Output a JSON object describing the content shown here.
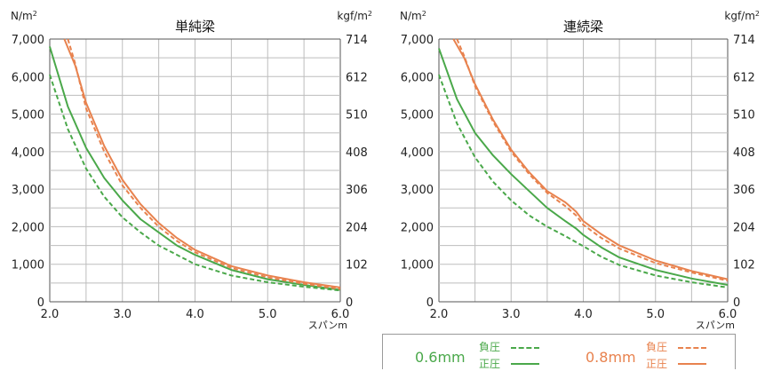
{
  "chart_data": [
    {
      "type": "line",
      "title": "単純梁",
      "x_unit": "スパンm",
      "y_left_unit": "N/m²",
      "y_right_unit": "kgf/m²",
      "x_ticks": [
        "2.0",
        "3.0",
        "4.0",
        "5.0",
        "6.0"
      ],
      "y_left_ticks": [
        "0",
        "1,000",
        "2,000",
        "3,000",
        "4,000",
        "5,000",
        "6,000",
        "7,000"
      ],
      "y_right_ticks": [
        "0",
        "102",
        "204",
        "306",
        "408",
        "510",
        "612",
        "714"
      ],
      "xlim": [
        2.0,
        6.0
      ],
      "ylim": [
        0,
        7000
      ],
      "grid": true,
      "series": [
        {
          "key": "s06_pos",
          "color": "#4aa84a",
          "dash": false,
          "points": [
            [
              2.0,
              6800
            ],
            [
              2.25,
              5200
            ],
            [
              2.5,
              4100
            ],
            [
              2.75,
              3300
            ],
            [
              3.0,
              2700
            ],
            [
              3.25,
              2200
            ],
            [
              3.5,
              1850
            ],
            [
              3.75,
              1500
            ],
            [
              4.0,
              1250
            ],
            [
              4.5,
              850
            ],
            [
              5.0,
              600
            ],
            [
              5.5,
              450
            ],
            [
              6.0,
              320
            ]
          ]
        },
        {
          "key": "s06_neg",
          "color": "#4aa84a",
          "dash": true,
          "points": [
            [
              2.0,
              6050
            ],
            [
              2.25,
              4600
            ],
            [
              2.5,
              3550
            ],
            [
              2.75,
              2800
            ],
            [
              3.0,
              2250
            ],
            [
              3.25,
              1850
            ],
            [
              3.5,
              1500
            ],
            [
              3.75,
              1250
            ],
            [
              4.0,
              1000
            ],
            [
              4.5,
              700
            ],
            [
              5.0,
              520
            ],
            [
              5.5,
              400
            ],
            [
              6.0,
              300
            ]
          ]
        },
        {
          "key": "s08_pos",
          "color": "#e8824e",
          "dash": false,
          "points": [
            [
              2.2,
              7000
            ],
            [
              2.35,
              6300
            ],
            [
              2.5,
              5300
            ],
            [
              2.75,
              4150
            ],
            [
              3.0,
              3250
            ],
            [
              3.25,
              2600
            ],
            [
              3.5,
              2100
            ],
            [
              3.75,
              1700
            ],
            [
              4.0,
              1380
            ],
            [
              4.5,
              950
            ],
            [
              5.0,
              700
            ],
            [
              5.5,
              520
            ],
            [
              6.0,
              380
            ]
          ]
        },
        {
          "key": "s08_neg",
          "color": "#e8824e",
          "dash": true,
          "points": [
            [
              2.25,
              7000
            ],
            [
              2.35,
              6350
            ],
            [
              2.5,
              5150
            ],
            [
              2.75,
              4000
            ],
            [
              3.0,
              3100
            ],
            [
              3.25,
              2500
            ],
            [
              3.5,
              2000
            ],
            [
              3.75,
              1620
            ],
            [
              4.0,
              1320
            ],
            [
              4.5,
              900
            ],
            [
              5.0,
              650
            ],
            [
              5.5,
              480
            ],
            [
              6.0,
              340
            ]
          ]
        }
      ]
    },
    {
      "type": "line",
      "title": "連続梁",
      "x_unit": "スパンm",
      "y_left_unit": "N/m²",
      "y_right_unit": "kgf/m²",
      "x_ticks": [
        "2.0",
        "3.0",
        "4.0",
        "5.0",
        "6.0"
      ],
      "y_left_ticks": [
        "0",
        "1,000",
        "2,000",
        "3,000",
        "4,000",
        "5,000",
        "6,000",
        "7,000"
      ],
      "y_right_ticks": [
        "0",
        "102",
        "204",
        "306",
        "408",
        "510",
        "612",
        "714"
      ],
      "xlim": [
        2.0,
        6.0
      ],
      "ylim": [
        0,
        7000
      ],
      "grid": true,
      "series": [
        {
          "key": "c06_pos",
          "color": "#4aa84a",
          "dash": false,
          "points": [
            [
              2.0,
              6750
            ],
            [
              2.25,
              5400
            ],
            [
              2.5,
              4500
            ],
            [
              2.75,
              3900
            ],
            [
              3.0,
              3400
            ],
            [
              3.25,
              2950
            ],
            [
              3.5,
              2500
            ],
            [
              3.75,
              2150
            ],
            [
              3.9,
              1950
            ],
            [
              4.0,
              1780
            ],
            [
              4.25,
              1450
            ],
            [
              4.5,
              1180
            ],
            [
              5.0,
              850
            ],
            [
              5.5,
              620
            ],
            [
              6.0,
              450
            ]
          ]
        },
        {
          "key": "c06_neg",
          "color": "#4aa84a",
          "dash": true,
          "points": [
            [
              2.0,
              6050
            ],
            [
              2.25,
              4750
            ],
            [
              2.5,
              3850
            ],
            [
              2.75,
              3200
            ],
            [
              3.0,
              2700
            ],
            [
              3.25,
              2300
            ],
            [
              3.5,
              2000
            ],
            [
              3.75,
              1750
            ],
            [
              4.0,
              1480
            ],
            [
              4.25,
              1200
            ],
            [
              4.5,
              980
            ],
            [
              5.0,
              700
            ],
            [
              5.5,
              520
            ],
            [
              6.0,
              380
            ]
          ]
        },
        {
          "key": "c08_pos",
          "color": "#e8824e",
          "dash": false,
          "points": [
            [
              2.2,
              7000
            ],
            [
              2.35,
              6500
            ],
            [
              2.5,
              5800
            ],
            [
              2.75,
              4850
            ],
            [
              3.0,
              4050
            ],
            [
              3.25,
              3450
            ],
            [
              3.5,
              2950
            ],
            [
              3.75,
              2650
            ],
            [
              3.9,
              2400
            ],
            [
              4.0,
              2150
            ],
            [
              4.25,
              1800
            ],
            [
              4.5,
              1500
            ],
            [
              5.0,
              1100
            ],
            [
              5.5,
              820
            ],
            [
              6.0,
              600
            ]
          ]
        },
        {
          "key": "c08_neg",
          "color": "#e8824e",
          "dash": true,
          "points": [
            [
              2.25,
              7000
            ],
            [
              2.35,
              6550
            ],
            [
              2.5,
              5750
            ],
            [
              2.75,
              4800
            ],
            [
              3.0,
              4000
            ],
            [
              3.25,
              3400
            ],
            [
              3.5,
              2900
            ],
            [
              3.75,
              2550
            ],
            [
              3.9,
              2300
            ],
            [
              4.0,
              2050
            ],
            [
              4.25,
              1700
            ],
            [
              4.5,
              1420
            ],
            [
              5.0,
              1030
            ],
            [
              5.5,
              780
            ],
            [
              6.0,
              560
            ]
          ]
        }
      ]
    }
  ],
  "legend": {
    "thin_label": "0.6mm",
    "thick_label": "0.8mm",
    "negative_label": "負圧",
    "positive_label": "正圧",
    "green": "#4aa84a",
    "orange": "#e8824e"
  }
}
